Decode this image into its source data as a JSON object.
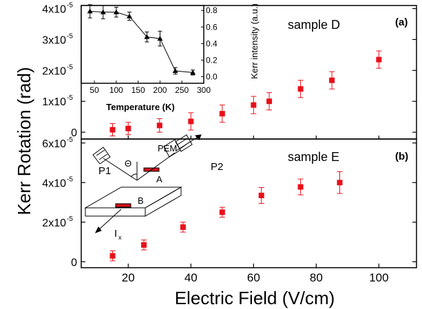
{
  "figure": {
    "ylabel": "Kerr Rotation (rad)",
    "xlabel": "Electric Field (V/cm)",
    "x_ticks": [
      "20",
      "40",
      "60",
      "80",
      "100"
    ]
  },
  "chart_data": [
    {
      "panel": "(a)",
      "type": "scatter",
      "annotation": "sample D",
      "x": [
        15,
        20,
        30,
        40,
        50,
        60,
        65,
        75,
        85,
        100
      ],
      "y": [
        8e-07,
        1.2e-06,
        2.2e-06,
        3.5e-06,
        6e-06,
        8.8e-06,
        1e-05,
        1.4e-05,
        1.68e-05,
        2.35e-05
      ],
      "y_err": [
        2e-06,
        2e-06,
        2.2e-06,
        2.8e-06,
        2.8e-06,
        2.8e-06,
        2.8e-06,
        2.8e-06,
        2.8e-06,
        2.8e-06
      ],
      "xlim": [
        5,
        112
      ],
      "ylim": [
        -2.2e-06,
        4.1e-05
      ],
      "y_ticks": [
        {
          "value": 0,
          "label": "0"
        },
        {
          "value": 1e-05,
          "label": "1x10",
          "exp": "-5"
        },
        {
          "value": 2e-05,
          "label": "2x10",
          "exp": "-5"
        },
        {
          "value": 3e-05,
          "label": "3x10",
          "exp": "-5"
        },
        {
          "value": 4e-05,
          "label": "4x10",
          "exp": "-5"
        }
      ],
      "color": "#e8101a",
      "marker": "square"
    },
    {
      "panel": "(a) inset",
      "type": "line",
      "xlabel": "Temperature (K)",
      "ylabel": "Kerr intensity (a.u.)",
      "x": [
        40,
        70,
        100,
        130,
        170,
        200,
        235,
        275
      ],
      "y": [
        0.79,
        0.78,
        0.78,
        0.73,
        0.48,
        0.46,
        0.07,
        0.05
      ],
      "y_err": [
        0.08,
        0.08,
        0.06,
        0.05,
        0.06,
        0.09,
        0.04,
        0.03
      ],
      "xlim": [
        20,
        300
      ],
      "ylim": [
        -0.08,
        0.86
      ],
      "x_ticks": [
        "50",
        "100",
        "150",
        "200",
        "250",
        "300"
      ],
      "y_ticks": [
        "0.0",
        "0.2",
        "0.4",
        "0.6",
        "0.8"
      ],
      "marker": "triangle",
      "color": "#000000"
    },
    {
      "panel": "(b)",
      "type": "scatter",
      "annotation": "sample E",
      "x": [
        15,
        25,
        37.5,
        50,
        62.5,
        75,
        87.5
      ],
      "y": [
        3e-06,
        8.5e-06,
        1.75e-05,
        2.5e-05,
        3.35e-05,
        3.78e-05,
        4e-05
      ],
      "y_err": [
        2.5e-06,
        2.5e-06,
        2.5e-06,
        2.5e-06,
        4e-06,
        4e-06,
        5.5e-06
      ],
      "xlim": [
        5,
        112
      ],
      "ylim": [
        -3e-06,
        6.2e-05
      ],
      "y_ticks": [
        {
          "value": 0,
          "label": "0"
        },
        {
          "value": 2e-05,
          "label": "2x10",
          "exp": "-5"
        },
        {
          "value": 4e-05,
          "label": "4x10",
          "exp": "-5"
        },
        {
          "value": 6e-05,
          "label": "6x10",
          "exp": "-5"
        }
      ],
      "color": "#e8101a",
      "marker": "square"
    }
  ],
  "schematic": {
    "labels": {
      "p1": "P1",
      "p2": "P2",
      "pem": "PEM",
      "theta": "Θ",
      "contact_a": "A",
      "contact_b": "B",
      "current": "I",
      "current_sub": "x"
    },
    "contact_color": "#d0121a"
  }
}
